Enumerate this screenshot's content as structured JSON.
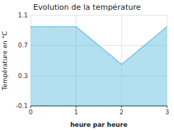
{
  "chart_data": {
    "type": "area",
    "title": "Evolution de la température",
    "x_label": "heure par heure",
    "y_label": "Température en °C",
    "x": [
      0,
      1,
      2,
      3
    ],
    "values": [
      0.95,
      0.95,
      0.45,
      0.95
    ],
    "xlim": [
      0,
      3
    ],
    "xticks": [
      0,
      1,
      2,
      3
    ],
    "ylim": [
      -0.1,
      1.1
    ],
    "yticks": [
      -0.1,
      0.3,
      0.7,
      1.1
    ],
    "color": "#55bbdd",
    "line_style": "dotted",
    "grid": true
  }
}
